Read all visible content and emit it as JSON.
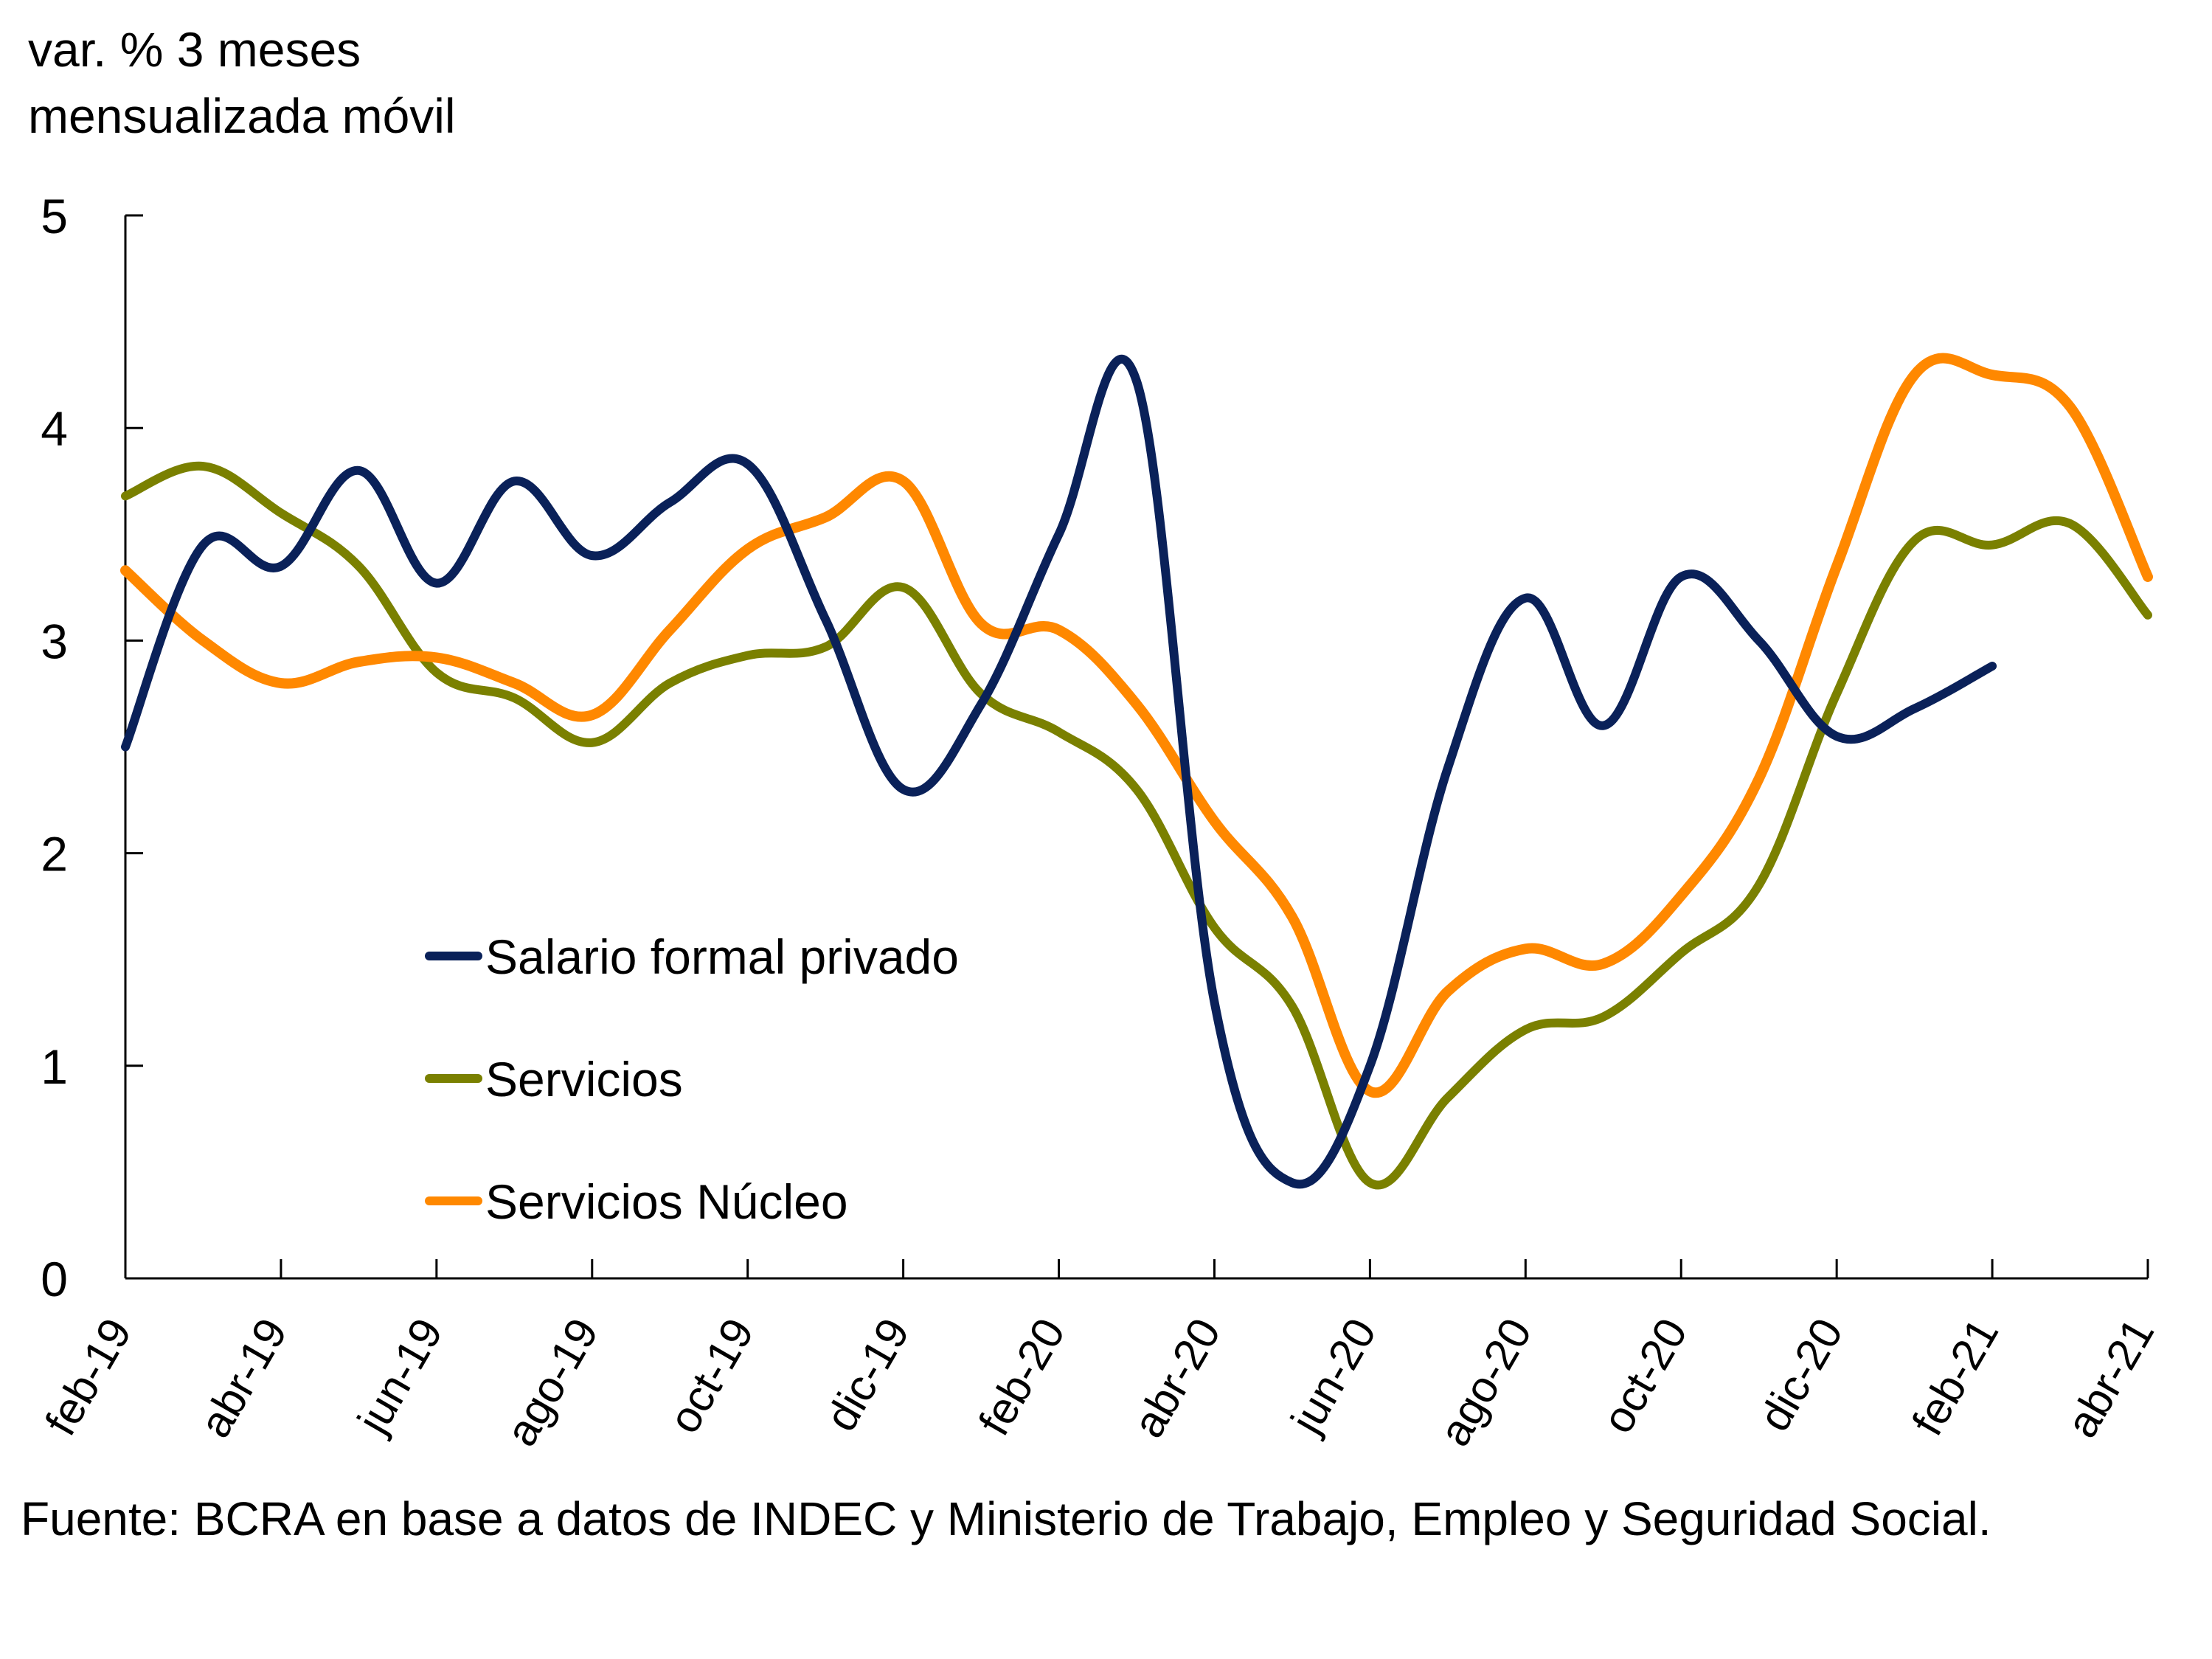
{
  "chart_data": {
    "type": "line",
    "title": "",
    "ylabel_lines": [
      "var. % 3 meses",
      "mensualizada móvil"
    ],
    "xlabel": "",
    "ylim": [
      0,
      5
    ],
    "yticks": [
      0,
      1,
      2,
      3,
      4,
      5
    ],
    "grid": false,
    "legend_position": "center-left",
    "x": [
      "feb-19",
      "mar-19",
      "abr-19",
      "may-19",
      "jun-19",
      "jul-19",
      "ago-19",
      "sep-19",
      "oct-19",
      "nov-19",
      "dic-19",
      "ene-20",
      "feb-20",
      "mar-20",
      "abr-20",
      "may-20",
      "jun-20",
      "jul-20",
      "ago-20",
      "sep-20",
      "oct-20",
      "nov-20",
      "dic-20",
      "ene-21",
      "feb-21",
      "mar-21",
      "abr-21"
    ],
    "xtick_labels": [
      "feb-19",
      "abr-19",
      "jun-19",
      "ago-19",
      "oct-19",
      "dic-19",
      "feb-20",
      "abr-20",
      "jun-20",
      "ago-20",
      "oct-20",
      "dic-20",
      "feb-21",
      "abr-21"
    ],
    "series": [
      {
        "name": "Salario formal privado",
        "color": "#0a2159",
        "values": [
          2.5,
          3.45,
          3.35,
          3.8,
          3.27,
          3.75,
          3.4,
          3.65,
          3.83,
          3.1,
          2.3,
          2.7,
          3.5,
          4.22,
          1.3,
          0.45,
          1.0,
          2.4,
          3.2,
          2.6,
          3.3,
          3.0,
          2.55,
          2.68,
          2.88,
          null,
          null
        ]
      },
      {
        "name": "Servicios",
        "color": "#7a8000",
        "values": [
          3.68,
          3.82,
          3.6,
          3.35,
          2.85,
          2.73,
          2.52,
          2.8,
          2.93,
          2.97,
          3.25,
          2.75,
          2.57,
          2.3,
          1.65,
          1.28,
          0.45,
          0.85,
          1.17,
          1.23,
          1.53,
          1.85,
          2.75,
          3.47,
          3.45,
          3.55,
          3.12
        ]
      },
      {
        "name": "Servicios Núcleo",
        "color": "#ff8800",
        "values": [
          3.33,
          3.0,
          2.8,
          2.9,
          2.92,
          2.8,
          2.65,
          3.05,
          3.43,
          3.58,
          3.75,
          3.08,
          3.05,
          2.7,
          2.15,
          1.7,
          0.88,
          1.35,
          1.55,
          1.48,
          1.8,
          2.35,
          3.35,
          4.25,
          4.25,
          4.1,
          3.3
        ]
      }
    ],
    "source": "Fuente: BCRA en base a datos de INDEC y Ministerio de Trabajo, Empleo y Seguridad Social."
  }
}
